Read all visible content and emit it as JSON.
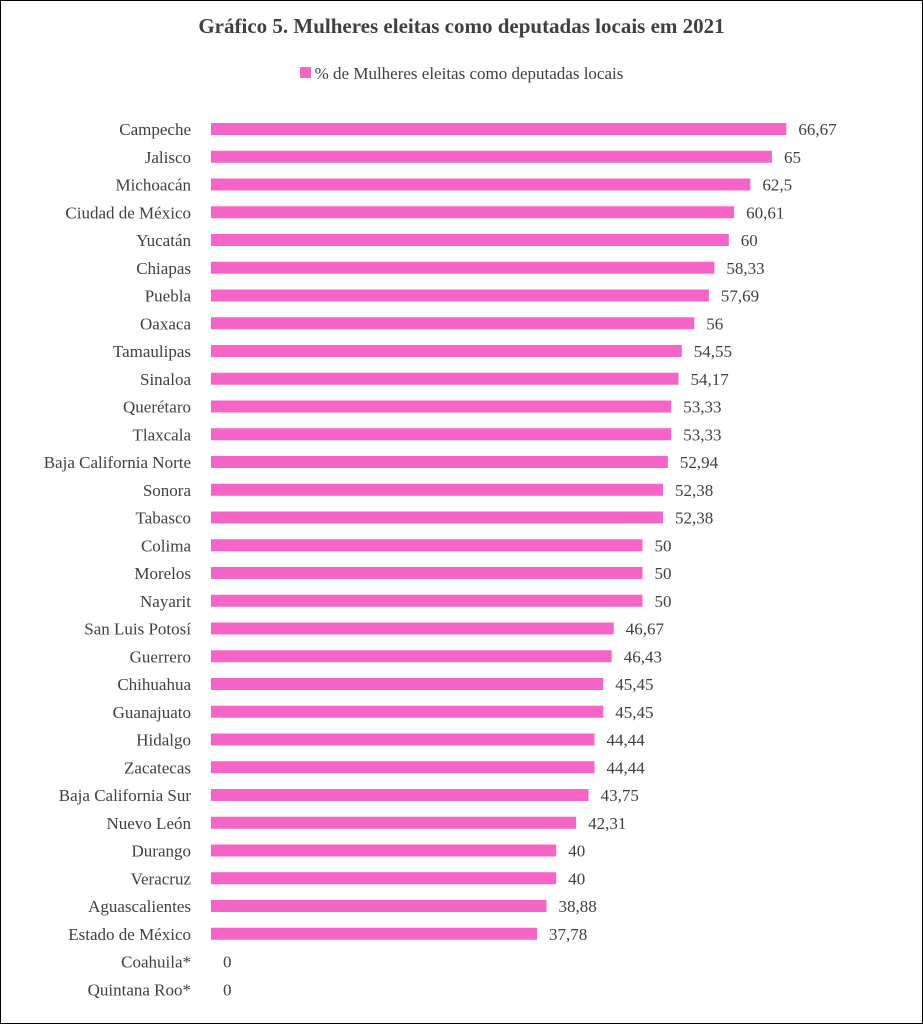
{
  "chart_data": {
    "type": "bar",
    "orientation": "horizontal",
    "title": "Gráfico 5. Mulheres eleitas como deputadas locais em 2021",
    "legend_position": "top",
    "grid": false,
    "xlim": [
      0,
      70
    ],
    "bar_color": "#f564c6",
    "categories": [
      "Campeche",
      "Jalisco",
      "Michoacán",
      "Ciudad de México",
      "Yucatán",
      "Chiapas",
      "Puebla",
      "Oaxaca",
      "Tamaulipas",
      "Sinaloa",
      "Querétaro",
      "Tlaxcala",
      "Baja California Norte",
      "Sonora",
      "Tabasco",
      "Colima",
      "Morelos",
      "Nayarit",
      "San Luis Potosí",
      "Guerrero",
      "Chihuahua",
      "Guanajuato",
      "Hidalgo",
      "Zacatecas",
      "Baja California Sur",
      "Nuevo León",
      "Durango",
      "Veracruz",
      "Aguascalientes",
      "Estado de México",
      "Coahuila*",
      "Quintana Roo*"
    ],
    "series": [
      {
        "name": "% de Mulheres eleitas como deputadas locais",
        "values": [
          66.67,
          65,
          62.5,
          60.61,
          60,
          58.33,
          57.69,
          56,
          54.55,
          54.17,
          53.33,
          53.33,
          52.94,
          52.38,
          52.38,
          50,
          50,
          50,
          46.67,
          46.43,
          45.45,
          45.45,
          44.44,
          44.44,
          43.75,
          42.31,
          40,
          40,
          38.88,
          37.78,
          0,
          0
        ],
        "labels": [
          "66,67",
          "65",
          "62,5",
          "60,61",
          "60",
          "58,33",
          "57,69",
          "56",
          "54,55",
          "54,17",
          "53,33",
          "53,33",
          "52,94",
          "52,38",
          "52,38",
          "50",
          "50",
          "50",
          "46,67",
          "46,43",
          "45,45",
          "45,45",
          "44,44",
          "44,44",
          "43,75",
          "42,31",
          "40",
          "40",
          "38,88",
          "37,78",
          "0",
          "0"
        ]
      }
    ]
  }
}
